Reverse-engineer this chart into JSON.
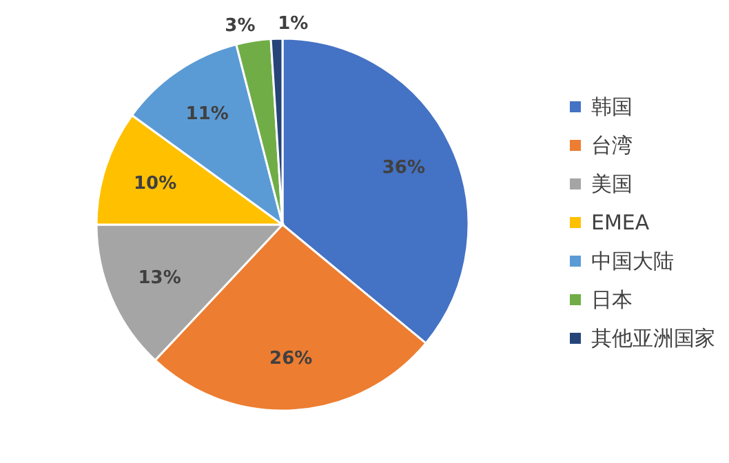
{
  "chart_data": {
    "type": "pie",
    "categories": [
      "韩国",
      "台湾",
      "美国",
      "EMEA",
      "中国大陆",
      "日本",
      "其他亚洲国家"
    ],
    "values": [
      36,
      26,
      13,
      10,
      11,
      3,
      1
    ],
    "colors": [
      "#4472c4",
      "#ed7d31",
      "#a5a5a5",
      "#ffc000",
      "#5b9bd5",
      "#70ad47",
      "#264478"
    ],
    "value_labels": [
      "36%",
      "26%",
      "13%",
      "10%",
      "11%",
      "3%",
      "1%"
    ],
    "legend": "right"
  }
}
